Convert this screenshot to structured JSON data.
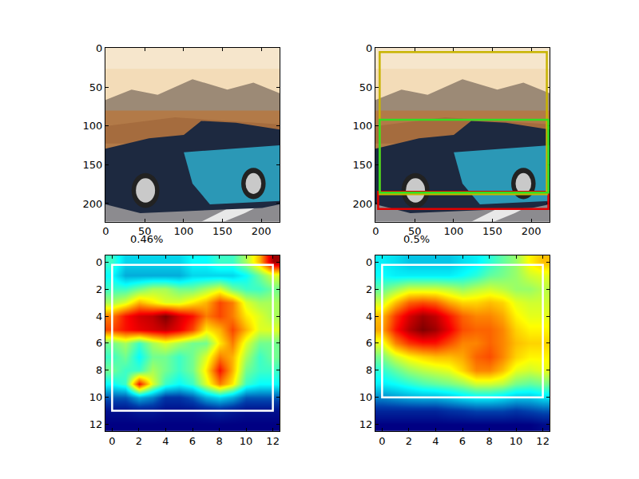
{
  "chart_data": [
    {
      "type": "image",
      "xlim": [
        -0.5,
        223.5
      ],
      "ylim": [
        223.5,
        -0.5
      ],
      "xticks": [
        0,
        50,
        100,
        150,
        200
      ],
      "yticks": [
        0,
        50,
        100,
        150,
        200
      ]
    },
    {
      "type": "image",
      "xlim": [
        -0.5,
        223.5
      ],
      "ylim": [
        223.5,
        -0.5
      ],
      "xticks": [
        0,
        50,
        100,
        150,
        200
      ],
      "yticks": [
        0,
        50,
        100,
        150,
        200
      ],
      "boxes": [
        {
          "x0": 3,
          "y0": 185,
          "x1": 222,
          "y1": 207,
          "color": "#e00000"
        },
        {
          "x0": 5,
          "y0": 5,
          "x1": 220,
          "y1": 188,
          "color": "#c8b400"
        },
        {
          "x0": 5,
          "y0": 92,
          "x1": 222,
          "y1": 186,
          "color": "#33dd22"
        }
      ]
    },
    {
      "type": "heatmap",
      "title": "0.46%",
      "xlim": [
        -0.5,
        12.5
      ],
      "ylim": [
        12.5,
        -0.5
      ],
      "xticks": [
        0,
        2,
        4,
        6,
        8,
        10,
        12
      ],
      "yticks": [
        0,
        2,
        4,
        6,
        8,
        10,
        12
      ],
      "x": [
        0,
        1,
        2,
        3,
        4,
        5,
        6,
        7,
        8,
        9,
        10,
        11,
        12
      ],
      "y": [
        0,
        1,
        2,
        3,
        4,
        5,
        6,
        7,
        8,
        9,
        10,
        11,
        12
      ],
      "cells": [
        [
          0.45,
          0.35,
          0.35,
          0.35,
          0.35,
          0.35,
          0.4,
          0.4,
          0.45,
          0.45,
          0.55,
          0.7,
          0.95
        ],
        [
          0.4,
          0.3,
          0.3,
          0.3,
          0.3,
          0.3,
          0.35,
          0.35,
          0.35,
          0.35,
          0.4,
          0.5,
          0.6
        ],
        [
          0.45,
          0.45,
          0.5,
          0.55,
          0.55,
          0.5,
          0.5,
          0.55,
          0.6,
          0.5,
          0.45,
          0.45,
          0.5
        ],
        [
          0.55,
          0.6,
          0.7,
          0.65,
          0.6,
          0.6,
          0.65,
          0.7,
          0.8,
          0.75,
          0.6,
          0.55,
          0.55
        ],
        [
          0.75,
          0.85,
          0.9,
          0.92,
          0.98,
          0.9,
          0.85,
          0.75,
          0.8,
          0.75,
          0.65,
          0.6,
          0.55
        ],
        [
          0.8,
          0.85,
          0.88,
          0.9,
          0.92,
          0.88,
          0.8,
          0.65,
          0.7,
          0.8,
          0.7,
          0.6,
          0.6
        ],
        [
          0.5,
          0.55,
          0.45,
          0.55,
          0.6,
          0.55,
          0.5,
          0.5,
          0.65,
          0.75,
          0.6,
          0.5,
          0.5
        ],
        [
          0.45,
          0.5,
          0.4,
          0.5,
          0.5,
          0.45,
          0.5,
          0.6,
          0.75,
          0.7,
          0.55,
          0.45,
          0.5
        ],
        [
          0.5,
          0.45,
          0.45,
          0.55,
          0.5,
          0.45,
          0.5,
          0.65,
          0.85,
          0.7,
          0.5,
          0.45,
          0.45
        ],
        [
          0.4,
          0.45,
          0.85,
          0.6,
          0.45,
          0.4,
          0.45,
          0.6,
          0.75,
          0.65,
          0.45,
          0.4,
          0.4
        ],
        [
          0.2,
          0.2,
          0.3,
          0.25,
          0.15,
          0.15,
          0.2,
          0.3,
          0.35,
          0.3,
          0.2,
          0.2,
          0.2
        ],
        [
          0.08,
          0.08,
          0.1,
          0.1,
          0.08,
          0.08,
          0.08,
          0.1,
          0.12,
          0.1,
          0.08,
          0.08,
          0.08
        ],
        [
          0.05,
          0.05,
          0.05,
          0.05,
          0.05,
          0.05,
          0.05,
          0.05,
          0.05,
          0.05,
          0.05,
          0.05,
          0.05
        ]
      ],
      "boxes": [
        {
          "x0": 0,
          "y0": 0.2,
          "x1": 12,
          "y1": 11,
          "color": "white"
        }
      ]
    },
    {
      "type": "heatmap",
      "title": "0.5%",
      "xlim": [
        -0.5,
        12.5
      ],
      "ylim": [
        12.5,
        -0.5
      ],
      "xticks": [
        0,
        2,
        4,
        6,
        8,
        10,
        12
      ],
      "yticks": [
        0,
        2,
        4,
        6,
        8,
        10,
        12
      ],
      "x": [
        0,
        1,
        2,
        3,
        4,
        5,
        6,
        7,
        8,
        9,
        10,
        11,
        12
      ],
      "y": [
        0,
        1,
        2,
        3,
        4,
        5,
        6,
        7,
        8,
        9,
        10,
        11,
        12
      ],
      "cells": [
        [
          0.4,
          0.38,
          0.35,
          0.35,
          0.35,
          0.35,
          0.38,
          0.4,
          0.45,
          0.5,
          0.55,
          0.65,
          0.7
        ],
        [
          0.42,
          0.4,
          0.4,
          0.4,
          0.4,
          0.4,
          0.42,
          0.45,
          0.5,
          0.52,
          0.55,
          0.6,
          0.62
        ],
        [
          0.5,
          0.55,
          0.6,
          0.6,
          0.6,
          0.58,
          0.55,
          0.58,
          0.6,
          0.58,
          0.55,
          0.55,
          0.58
        ],
        [
          0.6,
          0.7,
          0.78,
          0.8,
          0.78,
          0.72,
          0.68,
          0.68,
          0.7,
          0.68,
          0.62,
          0.6,
          0.6
        ],
        [
          0.7,
          0.82,
          0.9,
          0.95,
          0.92,
          0.85,
          0.78,
          0.75,
          0.75,
          0.72,
          0.65,
          0.62,
          0.62
        ],
        [
          0.72,
          0.85,
          0.93,
          0.98,
          0.95,
          0.88,
          0.8,
          0.78,
          0.78,
          0.75,
          0.68,
          0.65,
          0.65
        ],
        [
          0.62,
          0.75,
          0.82,
          0.85,
          0.85,
          0.8,
          0.75,
          0.75,
          0.78,
          0.75,
          0.7,
          0.68,
          0.68
        ],
        [
          0.52,
          0.6,
          0.65,
          0.68,
          0.7,
          0.7,
          0.72,
          0.78,
          0.8,
          0.75,
          0.68,
          0.65,
          0.65
        ],
        [
          0.45,
          0.5,
          0.55,
          0.58,
          0.6,
          0.62,
          0.68,
          0.75,
          0.75,
          0.7,
          0.62,
          0.6,
          0.62
        ],
        [
          0.4,
          0.42,
          0.45,
          0.48,
          0.5,
          0.52,
          0.55,
          0.6,
          0.6,
          0.58,
          0.52,
          0.5,
          0.52
        ],
        [
          0.28,
          0.3,
          0.32,
          0.33,
          0.33,
          0.35,
          0.38,
          0.4,
          0.4,
          0.38,
          0.35,
          0.35,
          0.38
        ],
        [
          0.15,
          0.15,
          0.15,
          0.15,
          0.15,
          0.17,
          0.18,
          0.2,
          0.2,
          0.2,
          0.18,
          0.2,
          0.22
        ],
        [
          0.08,
          0.08,
          0.08,
          0.08,
          0.08,
          0.08,
          0.08,
          0.08,
          0.08,
          0.08,
          0.08,
          0.08,
          0.1
        ]
      ],
      "boxes": [
        {
          "x0": 0,
          "y0": 0.2,
          "x1": 12,
          "y1": 10,
          "color": "white"
        }
      ]
    }
  ]
}
